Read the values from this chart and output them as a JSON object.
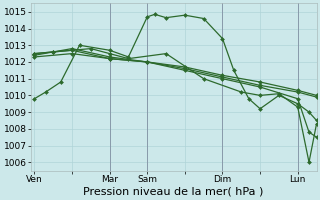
{
  "background_color": "#cce8ea",
  "grid_color": "#b0d4d8",
  "line_color": "#2d6a2d",
  "marker_color": "#2d6a2d",
  "xlabel": "Pression niveau de la mer( hPa )",
  "ylim": [
    1005.5,
    1015.5
  ],
  "yticks": [
    1006,
    1007,
    1008,
    1009,
    1010,
    1011,
    1012,
    1013,
    1014,
    1015
  ],
  "xlabel_fontsize": 8,
  "tick_fontsize": 6.5,
  "xtick_labels": [
    "Ven",
    "",
    "Mar",
    "Sam",
    "",
    "Dim",
    "",
    "Lun"
  ],
  "xtick_positions": [
    0,
    1,
    2,
    3,
    4,
    5,
    6,
    7
  ],
  "vline_positions": [
    2,
    3,
    5,
    7
  ],
  "xlim": [
    -0.1,
    7.5
  ],
  "series": [
    {
      "x": [
        0,
        0.3,
        0.7,
        1.2,
        2.0,
        2.5,
        3.0,
        3.2,
        3.5,
        4.0,
        4.5,
        5.0,
        5.3,
        5.7,
        6.0,
        6.5,
        7.0,
        7.3,
        7.5
      ],
      "y": [
        1009.8,
        1010.2,
        1010.8,
        1013.0,
        1012.7,
        1012.3,
        1014.7,
        1014.85,
        1014.65,
        1014.8,
        1014.6,
        1013.4,
        1011.5,
        1009.8,
        1009.2,
        1010.0,
        1009.5,
        1009.0,
        1008.5
      ]
    },
    {
      "x": [
        0,
        1,
        2,
        3,
        4,
        5,
        6,
        7,
        7.5
      ],
      "y": [
        1012.5,
        1012.7,
        1012.2,
        1012.0,
        1011.7,
        1011.2,
        1010.8,
        1010.3,
        1010.0
      ]
    },
    {
      "x": [
        0,
        1,
        2,
        3,
        4,
        5,
        6,
        7,
        7.5
      ],
      "y": [
        1012.3,
        1012.5,
        1012.2,
        1012.0,
        1011.6,
        1011.1,
        1010.6,
        1010.2,
        1009.9
      ]
    },
    {
      "x": [
        0,
        0.5,
        1.5,
        2.0,
        2.5,
        3.5,
        4.5,
        5.5,
        6.0,
        6.5,
        7.0,
        7.3,
        7.5
      ],
      "y": [
        1012.5,
        1012.6,
        1012.8,
        1012.5,
        1012.2,
        1012.5,
        1011.0,
        1010.2,
        1010.0,
        1010.1,
        1009.3,
        1006.0,
        1008.3
      ]
    },
    {
      "x": [
        0,
        0.5,
        1.0,
        2.0,
        3.0,
        4.0,
        5.0,
        6.0,
        7.0,
        7.3,
        7.5
      ],
      "y": [
        1012.4,
        1012.6,
        1012.8,
        1012.3,
        1012.0,
        1011.5,
        1011.0,
        1010.5,
        1009.8,
        1007.8,
        1007.5
      ]
    }
  ]
}
